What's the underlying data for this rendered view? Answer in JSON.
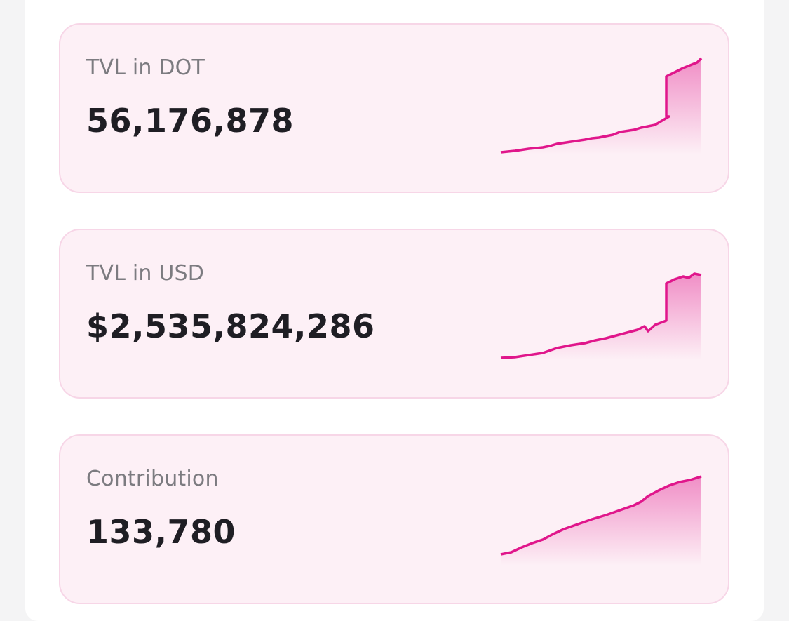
{
  "theme": {
    "accent": "#e0168b",
    "card_bg": "#fdf0f6",
    "card_border": "#f7d6e7",
    "label_color": "#7c7b80",
    "value_color": "#1f1e24"
  },
  "cards": [
    {
      "label": "TVL in DOT",
      "value": "56,176,878",
      "sparkline_icon": "trend-up-sparkline"
    },
    {
      "label": "TVL in USD",
      "value": "$2,535,824,286",
      "sparkline_icon": "trend-up-sparkline"
    },
    {
      "label": "Contribution",
      "value": "133,780",
      "sparkline_icon": "trend-up-sparkline"
    }
  ]
}
